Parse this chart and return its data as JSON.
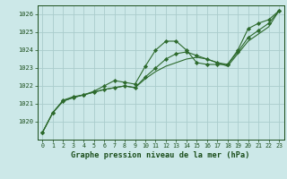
{
  "x": [
    0,
    1,
    2,
    3,
    4,
    5,
    6,
    7,
    8,
    9,
    10,
    11,
    12,
    13,
    14,
    15,
    16,
    17,
    18,
    19,
    20,
    21,
    22,
    23
  ],
  "series1": [
    1019.4,
    1020.5,
    1021.2,
    1021.4,
    1021.5,
    1021.7,
    1022.0,
    1022.3,
    1022.2,
    1022.1,
    1023.1,
    1024.0,
    1024.5,
    1024.5,
    1024.0,
    1023.3,
    1023.2,
    1023.2,
    1023.2,
    1024.0,
    1025.2,
    1025.5,
    1025.7,
    1026.2
  ],
  "series2": [
    1019.4,
    1020.5,
    1021.15,
    1021.35,
    1021.5,
    1021.65,
    1021.8,
    1021.9,
    1022.0,
    1021.9,
    1022.5,
    1023.0,
    1023.5,
    1023.8,
    1023.9,
    1023.7,
    1023.5,
    1023.3,
    1023.2,
    1023.9,
    1024.7,
    1025.1,
    1025.5,
    1026.2
  ],
  "series3": [
    1019.4,
    1020.5,
    1021.15,
    1021.35,
    1021.5,
    1021.65,
    1021.8,
    1021.9,
    1022.0,
    1021.9,
    1022.4,
    1022.8,
    1023.1,
    1023.3,
    1023.5,
    1023.6,
    1023.5,
    1023.3,
    1023.1,
    1023.8,
    1024.5,
    1024.9,
    1025.3,
    1026.2
  ],
  "line_color": "#2d6a2d",
  "marker_color": "#2d6a2d",
  "bg_color": "#cce8e8",
  "grid_color": "#aacccc",
  "axis_color": "#1a4d1a",
  "xlabel": "Graphe pression niveau de la mer (hPa)",
  "ylim": [
    1019.0,
    1026.5
  ],
  "yticks": [
    1020,
    1021,
    1022,
    1023,
    1024,
    1025,
    1026
  ],
  "xticks": [
    0,
    1,
    2,
    3,
    4,
    5,
    6,
    7,
    8,
    9,
    10,
    11,
    12,
    13,
    14,
    15,
    16,
    17,
    18,
    19,
    20,
    21,
    22,
    23
  ]
}
